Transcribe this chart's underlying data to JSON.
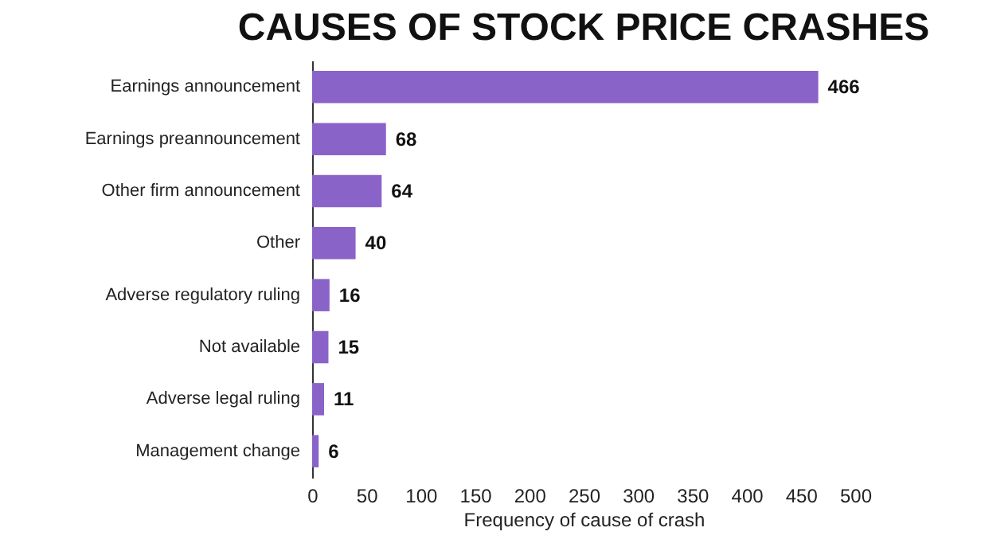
{
  "chart_data": {
    "type": "bar",
    "orientation": "horizontal",
    "title": "CAUSES OF STOCK PRICE CRASHES",
    "xlabel": "Frequency of cause of crash",
    "categories": [
      "Earnings announcement",
      "Earnings preannouncement",
      "Other firm announcement",
      "Other",
      "Adverse regulatory ruling",
      "Not available",
      "Adverse legal ruling",
      "Management change"
    ],
    "values": [
      466,
      68,
      64,
      40,
      16,
      15,
      11,
      6
    ],
    "color": "#8a63c9",
    "xlim": [
      0,
      500
    ],
    "xticks": [
      0,
      50,
      100,
      150,
      200,
      250,
      300,
      350,
      400,
      450,
      500
    ],
    "grid": false,
    "data_labels": true
  }
}
